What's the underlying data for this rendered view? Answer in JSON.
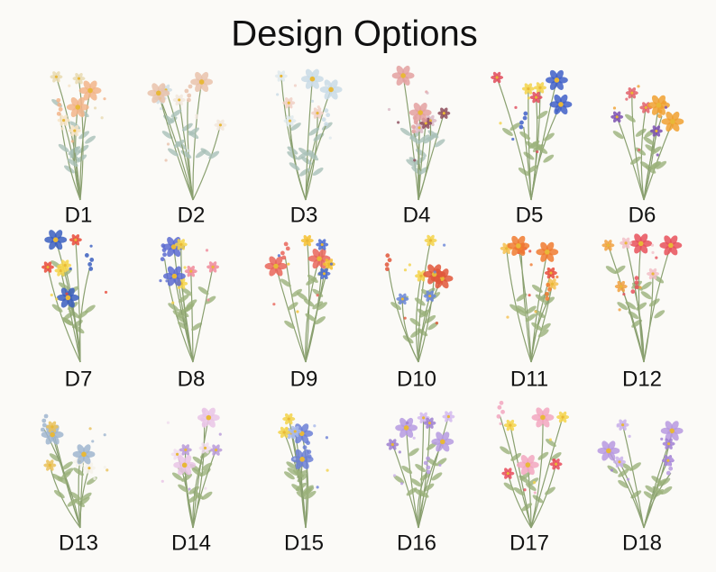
{
  "title": "Design Options",
  "designs": [
    "D1",
    "D2",
    "D3",
    "D4",
    "D5",
    "D6",
    "D7",
    "D8",
    "D9",
    "D10",
    "D11",
    "D12",
    "D13",
    "D14",
    "D15",
    "D16",
    "D17",
    "D18"
  ]
}
